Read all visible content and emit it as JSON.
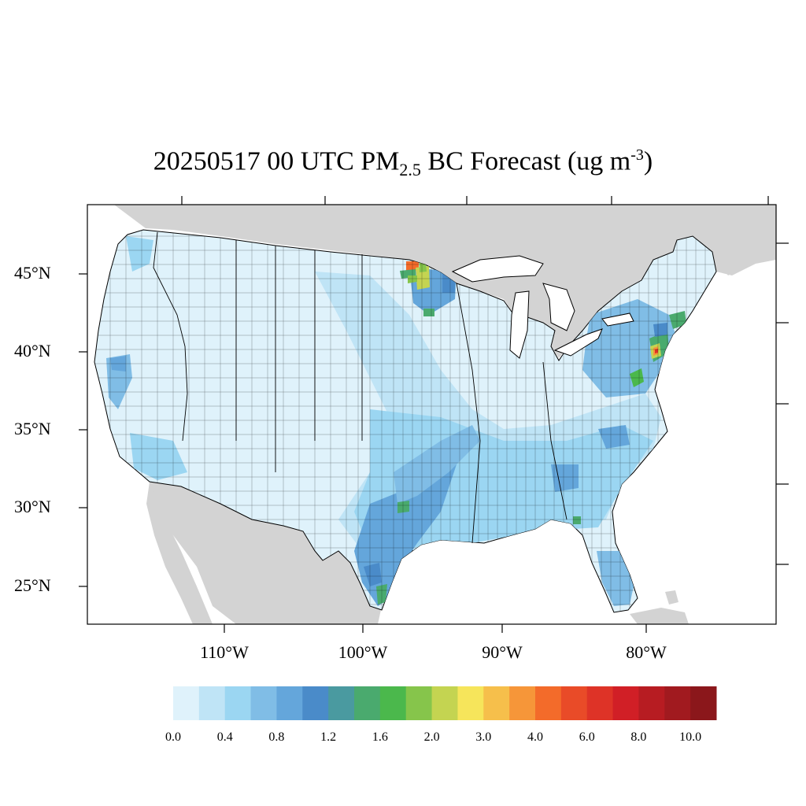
{
  "title": {
    "date": "20250517",
    "time": "00 UTC",
    "species": "PM",
    "species_sub": "2.5",
    "species_suffix": "BC Forecast (ug m",
    "units_sup": "-3",
    "units_close": ")"
  },
  "axes": {
    "lat_labels": [
      "45°N",
      "40°N",
      "35°N",
      "30°N",
      "25°N"
    ],
    "lon_labels": [
      "110°W",
      "100°W",
      "90°W",
      "80°W"
    ]
  },
  "colorbar": {
    "labels": [
      "0.0",
      "0.4",
      "0.8",
      "1.2",
      "1.6",
      "2.0",
      "3.0",
      "4.0",
      "6.0",
      "8.0",
      "10.0"
    ],
    "colors": [
      "#dff2fb",
      "#bfe4f6",
      "#9bd6f2",
      "#80bde6",
      "#64a6db",
      "#4a8bc9",
      "#4a9aa0",
      "#4aaa6e",
      "#4bb84c",
      "#86c54b",
      "#c4d451",
      "#f6e55b",
      "#f6bf4b",
      "#f69639",
      "#f36b2a",
      "#e94b28",
      "#de3327",
      "#d11f26",
      "#b71c22",
      "#a11a1f",
      "#8b171b"
    ]
  },
  "map": {
    "land_color": "#d3d3d3",
    "water_color": "#ffffff",
    "base_fill": "#dff2fb"
  }
}
